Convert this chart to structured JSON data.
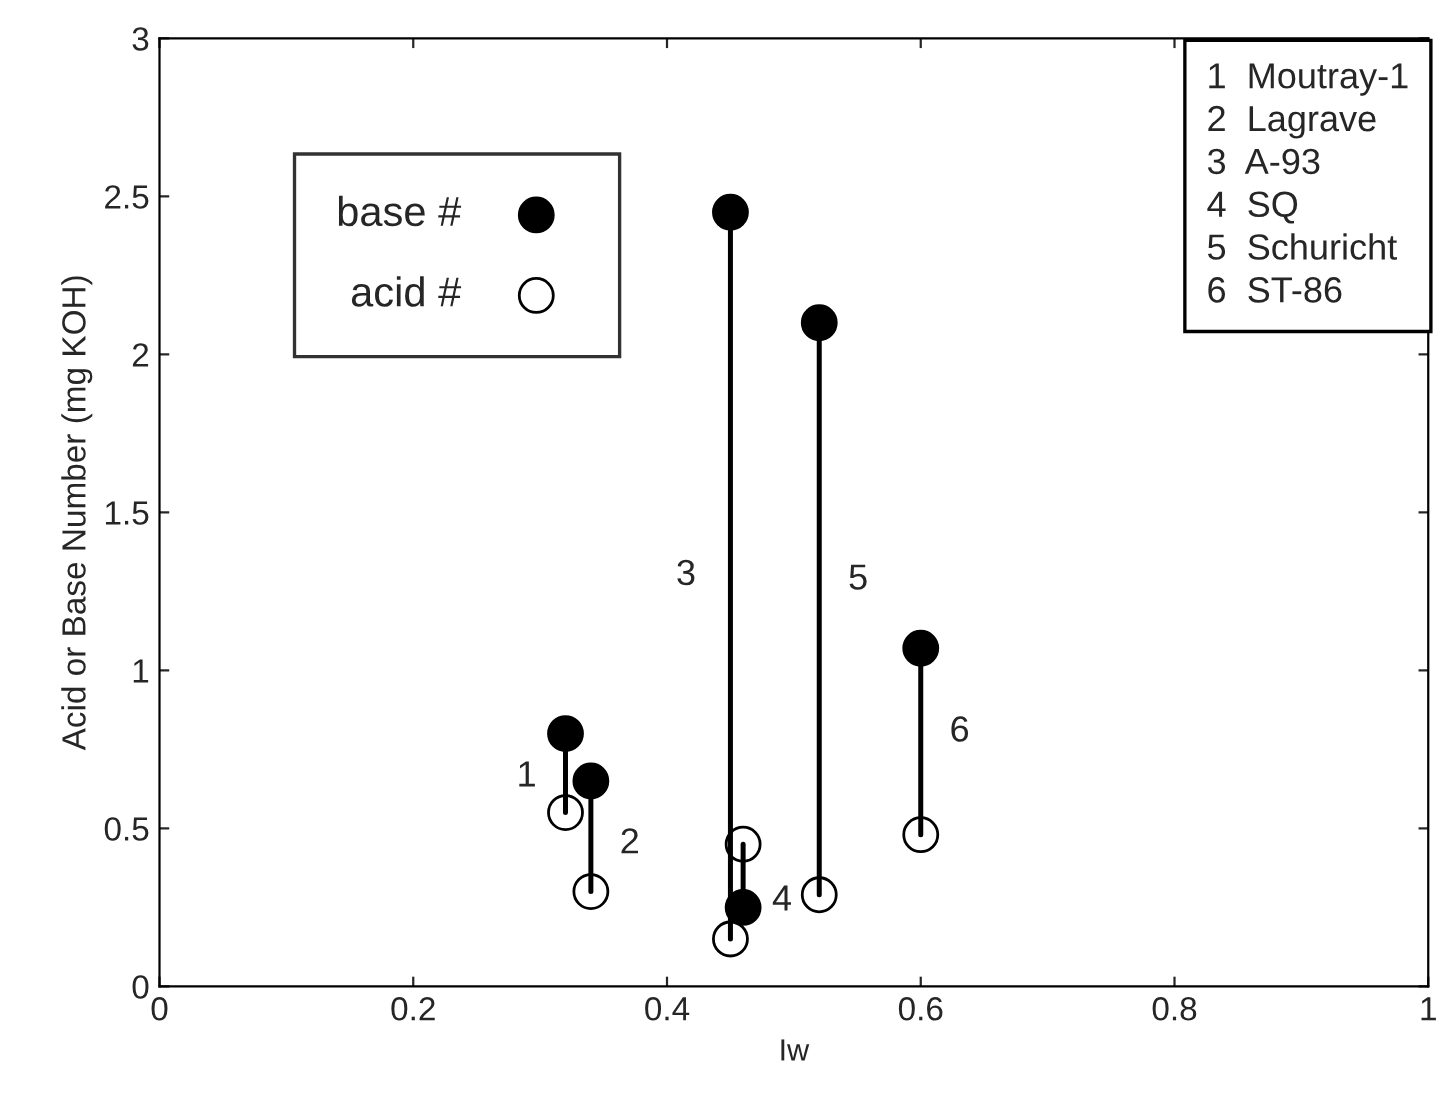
{
  "chart_data": {
    "type": "scatter",
    "xlabel": "Iw",
    "ylabel": "Acid or Base Number (mg KOH)",
    "xlim": [
      0,
      1
    ],
    "ylim": [
      0,
      3
    ],
    "xticks": [
      0,
      0.2,
      0.4,
      0.6,
      0.8,
      1
    ],
    "yticks": [
      0,
      0.5,
      1,
      1.5,
      2,
      2.5,
      3
    ],
    "grid": false,
    "legend": "top left",
    "series": [
      {
        "type": "line",
        "color": "#000000",
        "marker": "none",
        "x": [
          0.32,
          0.32
        ],
        "values": [
          0.55,
          0.8
        ]
      },
      {
        "type": "line",
        "color": "#000000",
        "marker": "none",
        "x": [
          0.34,
          0.34
        ],
        "values": [
          0.3,
          0.65
        ]
      },
      {
        "type": "line",
        "color": "#000000",
        "marker": "none",
        "x": [
          0.45,
          0.45
        ],
        "values": [
          0.15,
          2.45
        ]
      },
      {
        "type": "line",
        "color": "#000000",
        "marker": "none",
        "x": [
          0.46,
          0.46
        ],
        "values": [
          0.25,
          0.45
        ]
      },
      {
        "type": "line",
        "color": "#000000",
        "marker": "none",
        "x": [
          0.52,
          0.52
        ],
        "values": [
          0.29,
          2.1
        ]
      },
      {
        "type": "line",
        "color": "#000000",
        "marker": "none",
        "x": [
          0.6,
          0.6
        ],
        "values": [
          0.48,
          1.07
        ]
      },
      {
        "name": "base #",
        "marker": "circle",
        "color": "#000000",
        "x": [
          0.32,
          0.34,
          0.45,
          0.46,
          0.52,
          0.6
        ],
        "values": [
          0.8,
          0.65,
          2.45,
          0.25,
          2.1,
          1.07
        ]
      },
      {
        "name": "acid #",
        "marker": "circle",
        "color": "#ffffff",
        "x": [
          0.32,
          0.34,
          0.45,
          0.46,
          0.52,
          0.6
        ],
        "values": [
          0.55,
          0.3,
          0.15,
          0.45,
          0.29,
          0.48
        ]
      }
    ],
    "annotations": [
      "1",
      "2",
      "3",
      "4",
      "5",
      "6",
      "1  Moutray-1\n2  Lagrave\n3  A-93\n4  SQ\n5  Schuricht\n6  ST-86"
    ]
  }
}
